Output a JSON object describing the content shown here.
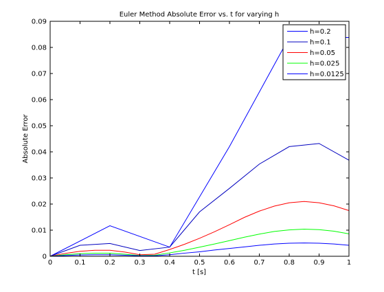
{
  "chart_data": {
    "type": "line",
    "title": "Euler Method Absolute Error vs. t for varying h",
    "xlabel": "t [s]",
    "ylabel": "Absolute Error",
    "xlim": [
      0,
      1
    ],
    "ylim": [
      0,
      0.09
    ],
    "xticks": [
      "0",
      "0.1",
      "0.2",
      "0.3",
      "0.4",
      "0.5",
      "0.6",
      "0.7",
      "0.8",
      "0.9",
      "1"
    ],
    "xtick_values": [
      0,
      0.1,
      0.2,
      0.3,
      0.4,
      0.5,
      0.6,
      0.7,
      0.8,
      0.9,
      1
    ],
    "yticks": [
      "0",
      "0.01",
      "0.02",
      "0.03",
      "0.04",
      "0.05",
      "0.06",
      "0.07",
      "0.08",
      "0.09"
    ],
    "ytick_values": [
      0,
      0.01,
      0.02,
      0.03,
      0.04,
      0.05,
      0.06,
      0.07,
      0.08,
      0.09
    ],
    "grid": false,
    "legend_position": "top-right",
    "series": [
      {
        "name": "h=0.2",
        "color": "#0000ff",
        "x": [
          0,
          0.2,
          0.4,
          0.6,
          0.8,
          1.0
        ],
        "y": [
          0,
          0.0117,
          0.0035,
          0.042,
          0.0838,
          0.0838
        ]
      },
      {
        "name": "h=0.1",
        "color": "#0000bf",
        "x": [
          0,
          0.1,
          0.2,
          0.3,
          0.4,
          0.5,
          0.6,
          0.7,
          0.8,
          0.9,
          1.0
        ],
        "y": [
          0,
          0.0042,
          0.0049,
          0.0022,
          0.0035,
          0.017,
          0.026,
          0.0353,
          0.042,
          0.0432,
          0.0368
        ]
      },
      {
        "name": "h=0.05",
        "color": "#ff0000",
        "x": [
          0,
          0.05,
          0.1,
          0.15,
          0.2,
          0.25,
          0.3,
          0.35,
          0.4,
          0.45,
          0.5,
          0.55,
          0.6,
          0.65,
          0.7,
          0.75,
          0.8,
          0.85,
          0.9,
          0.95,
          1.0
        ],
        "y": [
          0,
          0.0011,
          0.0019,
          0.0023,
          0.0023,
          0.0016,
          0.0006,
          0.0008,
          0.0026,
          0.0046,
          0.0069,
          0.0094,
          0.0121,
          0.0149,
          0.0173,
          0.0192,
          0.0205,
          0.021,
          0.0205,
          0.0193,
          0.0175
        ]
      },
      {
        "name": "h=0.025",
        "color": "#00ff00",
        "x": [
          0,
          0.05,
          0.1,
          0.15,
          0.2,
          0.25,
          0.3,
          0.35,
          0.4,
          0.45,
          0.5,
          0.55,
          0.6,
          0.65,
          0.7,
          0.75,
          0.8,
          0.85,
          0.9,
          0.95,
          1.0
        ],
        "y": [
          0,
          0.0006,
          0.001,
          0.0012,
          0.0012,
          0.0008,
          0.0003,
          0.0004,
          0.0013,
          0.0023,
          0.0035,
          0.0047,
          0.006,
          0.0073,
          0.0085,
          0.0095,
          0.0101,
          0.0104,
          0.0102,
          0.0096,
          0.0086
        ]
      },
      {
        "name": "h=0.0125",
        "color": "#0000ff",
        "x": [
          0,
          0.05,
          0.1,
          0.15,
          0.2,
          0.25,
          0.3,
          0.35,
          0.4,
          0.45,
          0.5,
          0.55,
          0.6,
          0.65,
          0.7,
          0.75,
          0.8,
          0.85,
          0.9,
          0.95,
          1.0
        ],
        "y": [
          0,
          0.0003,
          0.0005,
          0.0006,
          0.0006,
          0.0004,
          0.0002,
          0.0002,
          0.0006,
          0.0012,
          0.0017,
          0.0024,
          0.003,
          0.0036,
          0.0042,
          0.0047,
          0.005,
          0.0051,
          0.005,
          0.0047,
          0.0042
        ]
      }
    ]
  }
}
